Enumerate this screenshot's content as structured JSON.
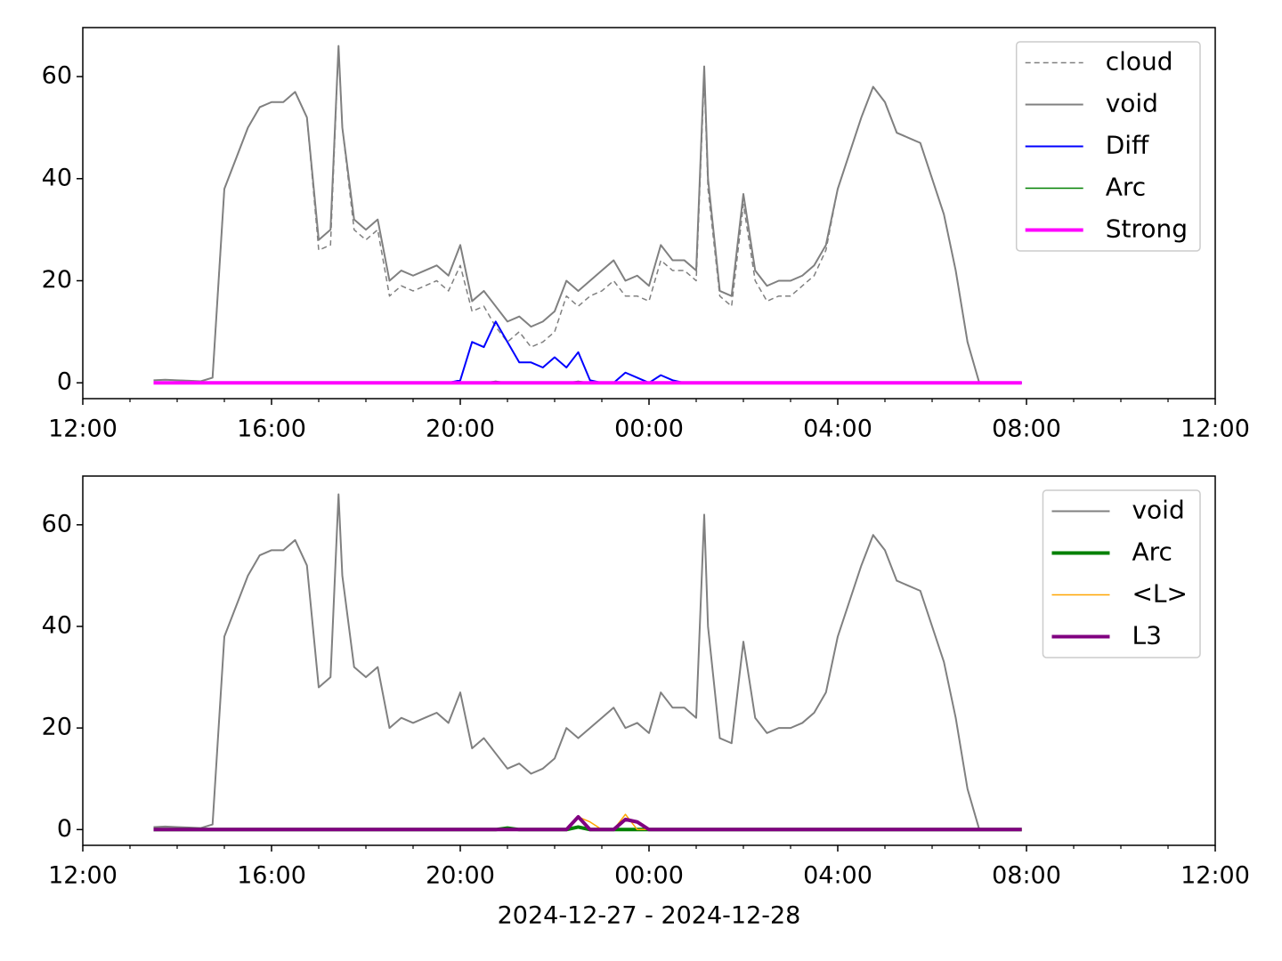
{
  "chart_data": [
    {
      "type": "line",
      "x": [
        1.5,
        1.75,
        2,
        2.25,
        2.5,
        2.75,
        3,
        3.25,
        3.5,
        3.75,
        4,
        4.25,
        4.5,
        4.75,
        5,
        5.25,
        5.42,
        5.5,
        5.75,
        6,
        6.25,
        6.5,
        6.75,
        7,
        7.25,
        7.5,
        7.75,
        8,
        8.25,
        8.5,
        8.75,
        9,
        9.25,
        9.5,
        9.75,
        10,
        10.25,
        10.5,
        10.75,
        11,
        11.25,
        11.5,
        11.75,
        12,
        12.25,
        12.5,
        12.75,
        13,
        13.17,
        13.25,
        13.5,
        13.75,
        14,
        14.25,
        14.5,
        14.75,
        15,
        15.25,
        15.5,
        15.75,
        16,
        16.25,
        16.5,
        16.75,
        17,
        17.25,
        17.5,
        17.75,
        18,
        18.25,
        18.5,
        18.75,
        19,
        19.25,
        19.5,
        19.75,
        19.9
      ],
      "series": [
        {
          "name": "cloud",
          "color": "#808080",
          "linewidth": 1.5,
          "dashed": true,
          "values": [
            0.5,
            0.6,
            0.5,
            0.4,
            0.3,
            1,
            38,
            44,
            50,
            54,
            55,
            55,
            57,
            52,
            26,
            27,
            66,
            50,
            30,
            28,
            30,
            17,
            19,
            18,
            19,
            20,
            18,
            23,
            14,
            15,
            11,
            8,
            10,
            7,
            8,
            10,
            17,
            15,
            17,
            18,
            20,
            17,
            17,
            16,
            24,
            22,
            22,
            20,
            60,
            38,
            17,
            15,
            35,
            20,
            16,
            17,
            17,
            19,
            21,
            26,
            38,
            45,
            52,
            58,
            55,
            49,
            48,
            47,
            40,
            33,
            22,
            8,
            0,
            null,
            null,
            null,
            null
          ]
        },
        {
          "name": "void",
          "color": "#808080",
          "linewidth": 2,
          "dashed": false,
          "values": [
            0.5,
            0.6,
            0.5,
            0.4,
            0.3,
            1,
            38,
            44,
            50,
            54,
            55,
            55,
            57,
            52,
            28,
            30,
            66,
            50,
            32,
            30,
            32,
            20,
            22,
            21,
            22,
            23,
            21,
            27,
            16,
            18,
            15,
            12,
            13,
            11,
            12,
            14,
            20,
            18,
            20,
            22,
            24,
            20,
            21,
            19,
            27,
            24,
            24,
            22,
            62,
            40,
            18,
            17,
            37,
            22,
            19,
            20,
            20,
            21,
            23,
            27,
            38,
            45,
            52,
            58,
            55,
            49,
            48,
            47,
            40,
            33,
            22,
            8,
            0,
            null,
            null,
            null,
            null
          ]
        },
        {
          "name": "Diff",
          "color": "#0000ff",
          "linewidth": 2,
          "dashed": false,
          "values": [
            0,
            0,
            0,
            0,
            0,
            0,
            0,
            0,
            0,
            0,
            0,
            0,
            0,
            0,
            0,
            0,
            0,
            0,
            0,
            0,
            0,
            0,
            0,
            0,
            0,
            0,
            0,
            0.5,
            8,
            7,
            12,
            8,
            4,
            4,
            3,
            5,
            3,
            6,
            0.5,
            0,
            0,
            2,
            1,
            0,
            1.5,
            0.5,
            0,
            0,
            0,
            0,
            0,
            0,
            0,
            0,
            0,
            0,
            0,
            0,
            0,
            0,
            0,
            0,
            0,
            0,
            0,
            0,
            0,
            0,
            0,
            0,
            0,
            0,
            0,
            0,
            0,
            0,
            0
          ]
        },
        {
          "name": "Arc",
          "color": "#008000",
          "linewidth": 1.5,
          "dashed": false,
          "values": [
            0,
            0,
            0,
            0,
            0,
            0,
            0,
            0,
            0,
            0,
            0,
            0,
            0,
            0,
            0,
            0,
            0,
            0,
            0,
            0,
            0,
            0,
            0,
            0,
            0,
            0,
            0,
            0,
            0,
            0,
            0.3,
            0,
            0,
            0,
            0,
            0,
            0,
            0.3,
            0,
            0,
            0,
            0,
            0,
            0,
            0,
            0,
            0,
            0,
            0,
            0,
            0,
            0,
            0,
            0,
            0,
            0,
            0,
            0,
            0,
            0,
            0,
            0,
            0,
            0,
            0,
            0,
            0,
            0,
            0,
            0,
            0,
            0,
            0,
            0,
            0,
            0,
            0
          ]
        },
        {
          "name": "Strong",
          "color": "#ff00ff",
          "linewidth": 4,
          "dashed": false,
          "values": [
            0,
            0,
            0,
            0,
            0,
            0,
            0,
            0,
            0,
            0,
            0,
            0,
            0,
            0,
            0,
            0,
            0,
            0,
            0,
            0,
            0,
            0,
            0,
            0,
            0,
            0,
            0,
            0,
            0,
            0,
            0,
            0,
            0,
            0,
            0,
            0,
            0,
            0,
            0,
            0,
            0,
            0,
            0,
            0,
            0,
            0,
            0,
            0,
            0,
            0,
            0,
            0,
            0,
            0,
            0,
            0,
            0,
            0,
            0,
            0,
            0,
            0,
            0,
            0,
            0,
            0,
            0,
            0,
            0,
            0,
            0,
            0,
            0,
            0,
            0,
            0,
            0
          ]
        }
      ],
      "xlim": [
        0,
        24
      ],
      "xticks": [
        {
          "value": 0,
          "label": "12:00"
        },
        {
          "value": 4,
          "label": "16:00"
        },
        {
          "value": 8,
          "label": "20:00"
        },
        {
          "value": 12,
          "label": "00:00"
        },
        {
          "value": 16,
          "label": "04:00"
        },
        {
          "value": 20,
          "label": "08:00"
        },
        {
          "value": 24,
          "label": "12:00"
        }
      ],
      "xminorticks": [
        1,
        2,
        3,
        5,
        6,
        7,
        9,
        10,
        11,
        13,
        14,
        15,
        17,
        18,
        19,
        21,
        22,
        23
      ],
      "ylim": [
        -3.1,
        69.6
      ],
      "yticks": [
        0,
        20,
        40,
        60
      ],
      "legend": "upper right"
    },
    {
      "type": "line",
      "x": [
        1.5,
        1.75,
        2,
        2.25,
        2.5,
        2.75,
        3,
        3.25,
        3.5,
        3.75,
        4,
        4.25,
        4.5,
        4.75,
        5,
        5.25,
        5.42,
        5.5,
        5.75,
        6,
        6.25,
        6.5,
        6.75,
        7,
        7.25,
        7.5,
        7.75,
        8,
        8.25,
        8.5,
        8.75,
        9,
        9.25,
        9.5,
        9.75,
        10,
        10.25,
        10.5,
        10.75,
        11,
        11.25,
        11.5,
        11.75,
        12,
        12.25,
        12.5,
        12.75,
        13,
        13.17,
        13.25,
        13.5,
        13.75,
        14,
        14.25,
        14.5,
        14.75,
        15,
        15.25,
        15.5,
        15.75,
        16,
        16.25,
        16.5,
        16.75,
        17,
        17.25,
        17.5,
        17.75,
        18,
        18.25,
        18.5,
        18.75,
        19,
        19.25,
        19.5,
        19.75,
        19.9
      ],
      "series": [
        {
          "name": "void",
          "color": "#808080",
          "linewidth": 2,
          "dashed": false,
          "values": [
            0.5,
            0.6,
            0.5,
            0.4,
            0.3,
            1,
            38,
            44,
            50,
            54,
            55,
            55,
            57,
            52,
            28,
            30,
            66,
            50,
            32,
            30,
            32,
            20,
            22,
            21,
            22,
            23,
            21,
            27,
            16,
            18,
            15,
            12,
            13,
            11,
            12,
            14,
            20,
            18,
            20,
            22,
            24,
            20,
            21,
            19,
            27,
            24,
            24,
            22,
            62,
            40,
            18,
            17,
            37,
            22,
            19,
            20,
            20,
            21,
            23,
            27,
            38,
            45,
            52,
            58,
            55,
            49,
            48,
            47,
            40,
            33,
            22,
            8,
            0,
            null,
            null,
            null,
            null
          ]
        },
        {
          "name": "Arc",
          "color": "#008000",
          "linewidth": 4,
          "dashed": false,
          "values": [
            0,
            0,
            0,
            0,
            0,
            0,
            0,
            0,
            0,
            0,
            0,
            0,
            0,
            0,
            0,
            0,
            0,
            0,
            0,
            0,
            0,
            0,
            0,
            0,
            0,
            0,
            0,
            0,
            0,
            0,
            0,
            0.3,
            0,
            0,
            0,
            0,
            0,
            0.5,
            0,
            0,
            0,
            0,
            0,
            0,
            0,
            0,
            0,
            0,
            0,
            0,
            0,
            0,
            0,
            0,
            0,
            0,
            0,
            0,
            0,
            0,
            0,
            0,
            0,
            0,
            0,
            0,
            0,
            0,
            0,
            0,
            0,
            0,
            0,
            0,
            0,
            0,
            0
          ]
        },
        {
          "name": "<L>",
          "color": "#ffa500",
          "linewidth": 1.5,
          "dashed": false,
          "values": [
            0,
            0,
            0,
            0,
            0,
            0,
            0,
            0,
            0,
            0,
            0,
            0,
            0,
            0,
            0,
            0,
            0,
            0,
            0,
            0,
            0,
            0,
            0,
            0,
            0,
            0,
            0,
            0,
            0,
            0,
            0,
            0,
            0,
            0,
            0,
            0,
            0,
            2.5,
            1.5,
            0,
            0,
            3,
            0,
            0,
            0,
            0,
            0,
            0,
            0,
            0,
            0,
            0,
            0,
            0,
            0,
            0,
            0,
            0,
            0,
            0,
            0,
            0,
            0,
            0,
            0,
            0,
            0,
            0,
            0,
            0,
            0,
            0,
            0,
            0,
            0,
            0,
            0
          ]
        },
        {
          "name": "L3",
          "color": "#800080",
          "linewidth": 4,
          "dashed": false,
          "values": [
            0,
            0,
            0,
            0,
            0,
            0,
            0,
            0,
            0,
            0,
            0,
            0,
            0,
            0,
            0,
            0,
            0,
            0,
            0,
            0,
            0,
            0,
            0,
            0,
            0,
            0,
            0,
            0,
            0,
            0,
            0,
            0,
            0,
            0,
            0,
            0,
            0,
            2.5,
            0,
            0,
            0,
            2,
            1.5,
            0,
            0,
            0,
            0,
            0,
            0,
            0,
            0,
            0,
            0,
            0,
            0,
            0,
            0,
            0,
            0,
            0,
            0,
            0,
            0,
            0,
            0,
            0,
            0,
            0,
            0,
            0,
            0,
            0,
            0,
            0,
            0,
            0,
            0
          ]
        }
      ],
      "xlim": [
        0,
        24
      ],
      "xticks": [
        {
          "value": 0,
          "label": "12:00"
        },
        {
          "value": 4,
          "label": "16:00"
        },
        {
          "value": 8,
          "label": "20:00"
        },
        {
          "value": 12,
          "label": "00:00"
        },
        {
          "value": 16,
          "label": "04:00"
        },
        {
          "value": 20,
          "label": "08:00"
        },
        {
          "value": 24,
          "label": "12:00"
        }
      ],
      "xminorticks": [
        1,
        2,
        3,
        5,
        6,
        7,
        9,
        10,
        11,
        13,
        14,
        15,
        17,
        18,
        19,
        21,
        22,
        23
      ],
      "ylim": [
        -3.1,
        69.6
      ],
      "yticks": [
        0,
        20,
        40,
        60
      ],
      "xlabel": "2024-12-27 - 2024-12-28",
      "legend": "upper right"
    }
  ]
}
